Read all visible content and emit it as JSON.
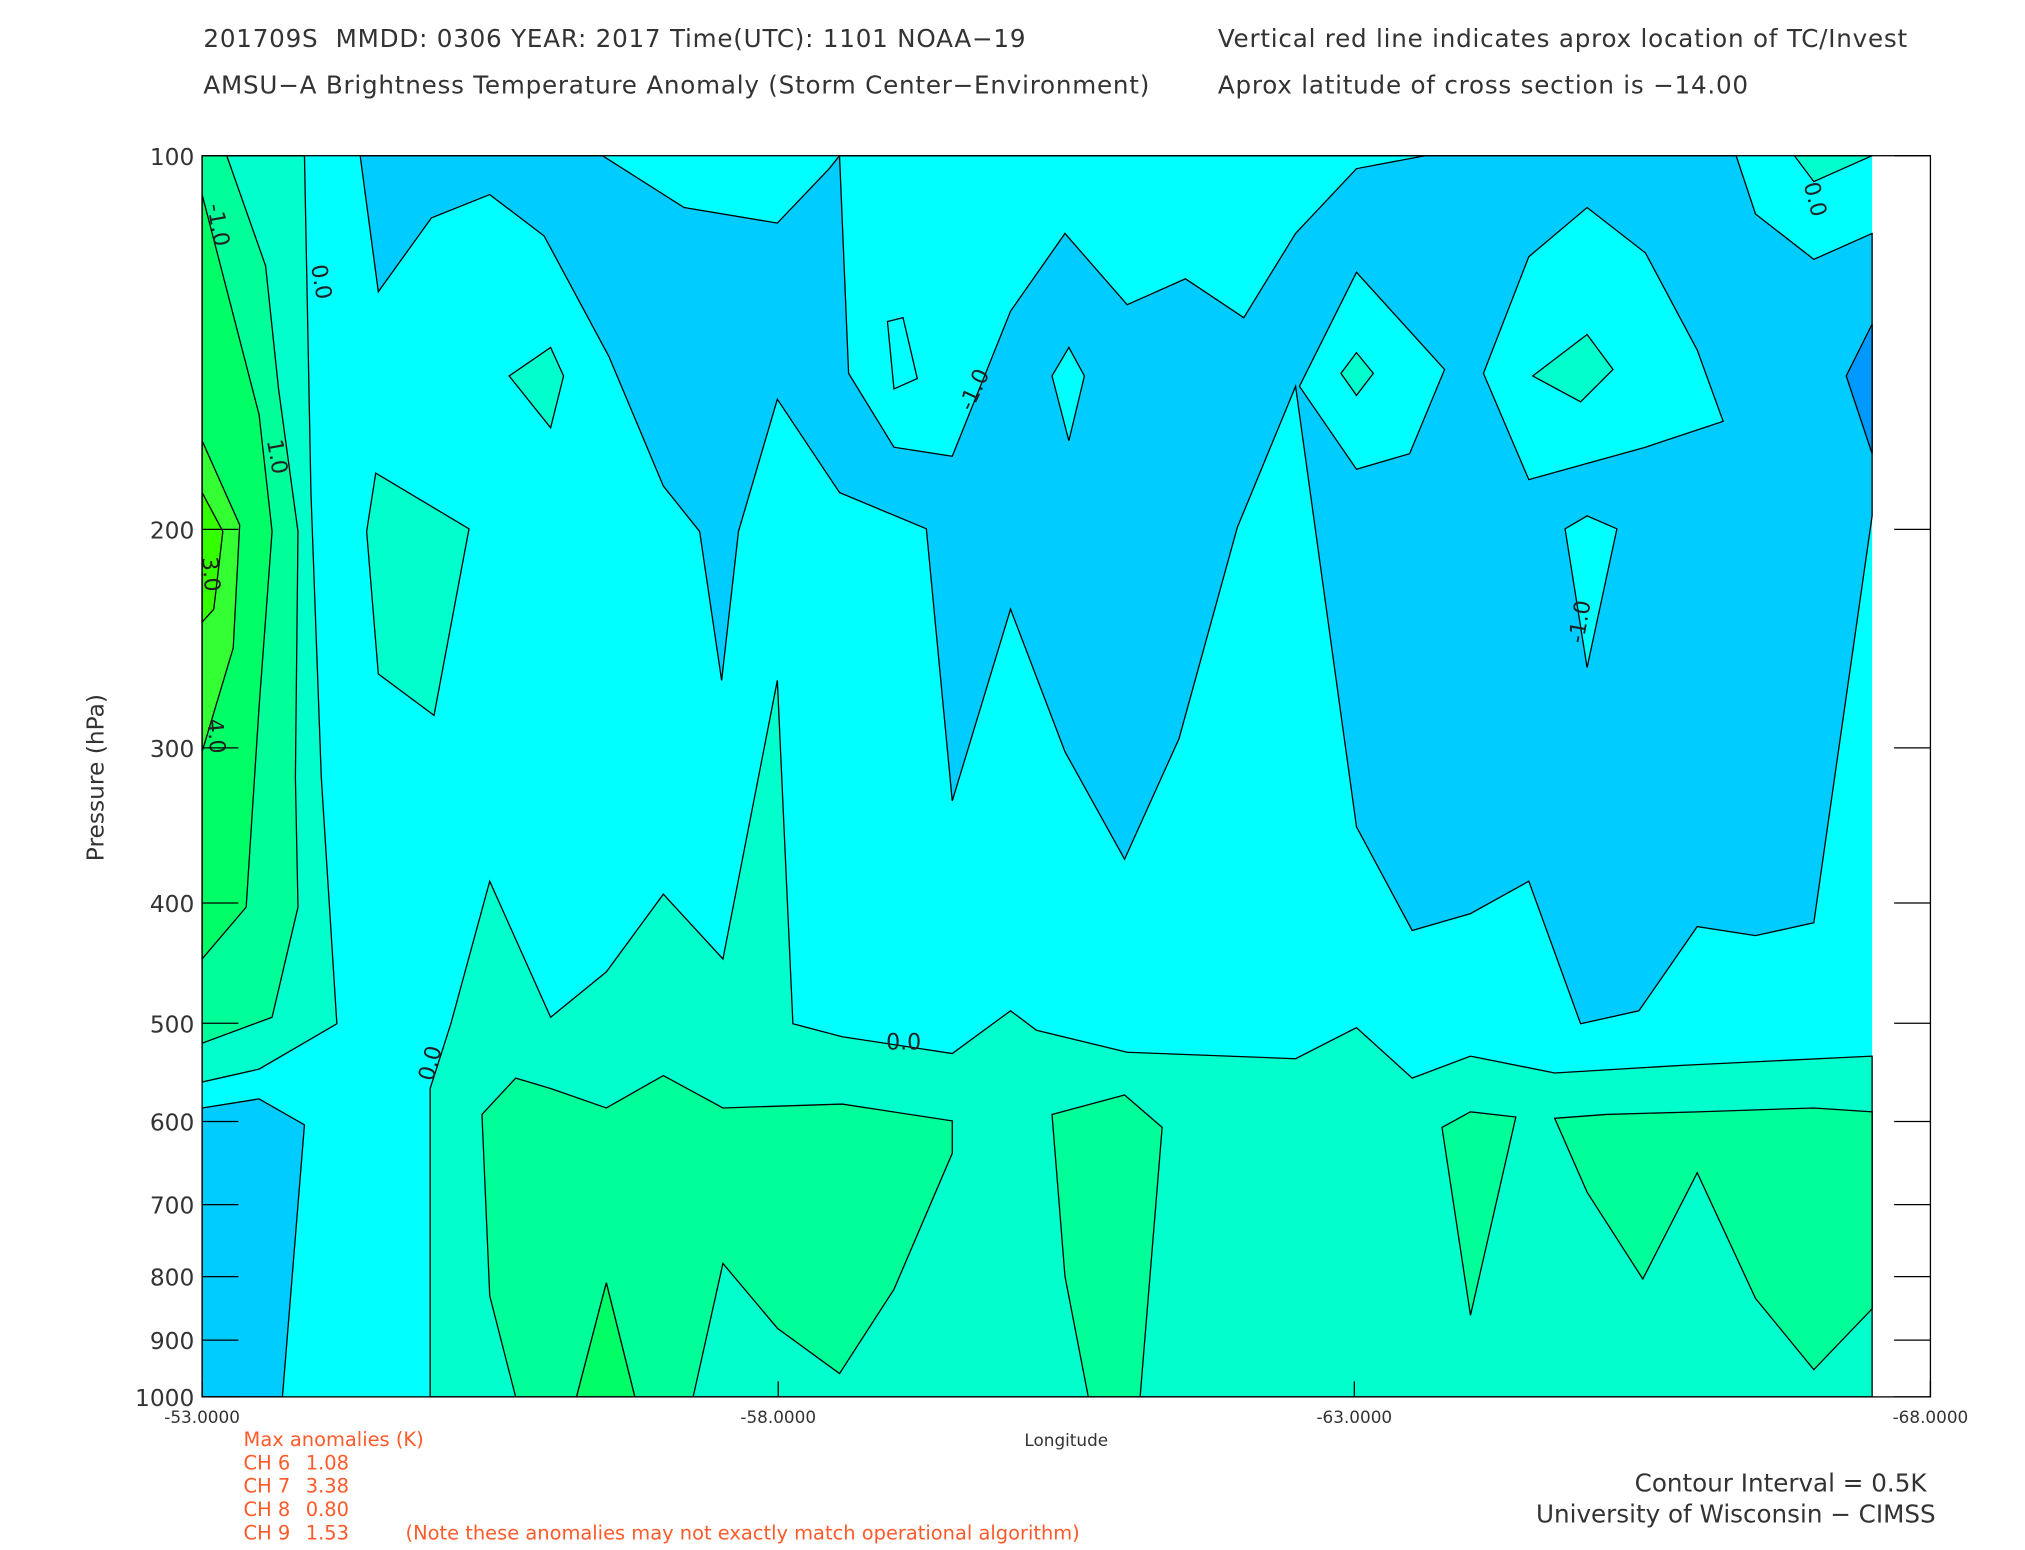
{
  "chart_data": {
    "type": "contour",
    "title_lines": [
      "201709S  MMDD: 0306 YEAR: 2017 Time(UTC): 1101 NOAA−19",
      "AMSU−A Brightness Temperature Anomaly (Storm Center−Environment)"
    ],
    "note_lines": [
      "Vertical red line indicates aprox location of TC/Invest",
      "Aprox latitude of cross section is −14.00"
    ],
    "x_label": "Longitude",
    "y_label": "Pressure (hPa)",
    "xlim": [
      -53,
      -68
    ],
    "xticks": [
      {
        "value": -53,
        "label": "-53.0000"
      },
      {
        "value": -58,
        "label": "-58.0000"
      },
      {
        "value": -63,
        "label": "-63.0000"
      },
      {
        "value": -68,
        "label": "-68.0000"
      }
    ],
    "ylim": [
      1000,
      100
    ],
    "y_scale": "log",
    "yticks": [
      100,
      200,
      300,
      400,
      500,
      600,
      700,
      800,
      900,
      1000
    ],
    "contour_labels": [
      "-1.0",
      "0.0",
      "1.0",
      "3.0",
      "4.0",
      "0.0",
      "0.0",
      "-1.0",
      "-1.0",
      "0.0"
    ]
  },
  "footer": {
    "max_anomalies": {
      "title": "Max anomalies (K)",
      "rows": [
        {
          "channel": "CH 6",
          "value": "1.08"
        },
        {
          "channel": "CH 7",
          "value": "3.38"
        },
        {
          "channel": "CH 8",
          "value": "0.80"
        },
        {
          "channel": "CH 9",
          "value": "1.53"
        }
      ]
    },
    "disclaimer": "(Note these anomalies may not exactly match operational algorithm)",
    "contour_interval": "Contour Interval = 0.5K",
    "credit": "University of Wisconsin − CIMSS"
  }
}
